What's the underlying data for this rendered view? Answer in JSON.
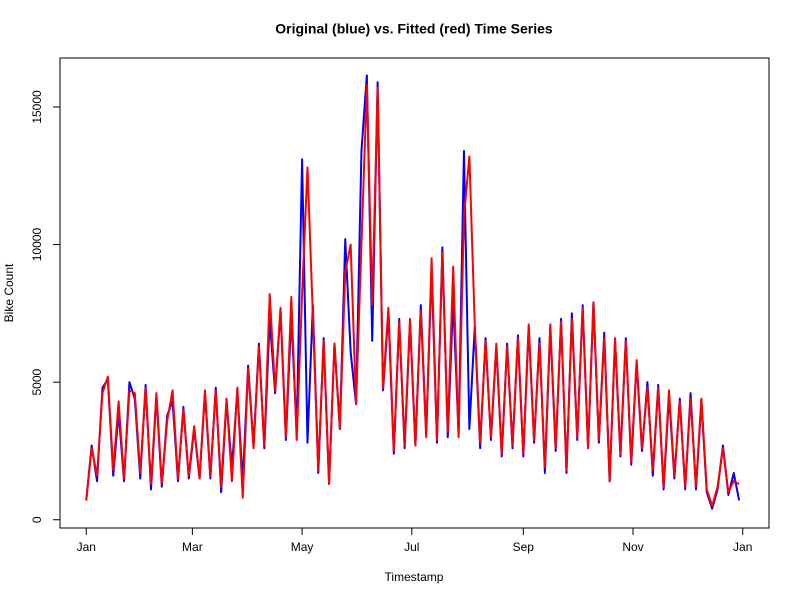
{
  "chart_data": {
    "type": "line",
    "title": "Original (blue) vs. Fitted (red) Time Series",
    "xlabel": "Timestamp",
    "ylabel": "Bike Count",
    "x": [
      0,
      3,
      6,
      9,
      12,
      15,
      18,
      21,
      24,
      27,
      30,
      33,
      36,
      39,
      42,
      45,
      48,
      51,
      54,
      57,
      60,
      63,
      66,
      69,
      72,
      75,
      78,
      81,
      84,
      87,
      90,
      93,
      96,
      99,
      102,
      105,
      108,
      111,
      114,
      117,
      120,
      123,
      126,
      129,
      132,
      135,
      138,
      141,
      144,
      147,
      150,
      153,
      156,
      159,
      162,
      165,
      168,
      171,
      174,
      177,
      180,
      183,
      186,
      189,
      192,
      195,
      198,
      201,
      204,
      207,
      210,
      213,
      216,
      219,
      222,
      225,
      228,
      231,
      234,
      237,
      240,
      243,
      246,
      249,
      252,
      255,
      258,
      261,
      264,
      267,
      270,
      273,
      276,
      279,
      282,
      285,
      288,
      291,
      294,
      297,
      300,
      303,
      306,
      309,
      312,
      315,
      318,
      321,
      324,
      327,
      330,
      333,
      336,
      339,
      342,
      345,
      348,
      351,
      354,
      357,
      360,
      363
    ],
    "series": [
      {
        "name": "Original",
        "color": "#0000ff",
        "values": [
          700,
          2700,
          1400,
          4800,
          5100,
          1600,
          3900,
          1400,
          5000,
          4400,
          1500,
          4900,
          1100,
          4500,
          1200,
          3800,
          4300,
          1400,
          4100,
          1500,
          3300,
          1500,
          4600,
          1500,
          4800,
          1000,
          4300,
          1900,
          4700,
          1400,
          5600,
          2700,
          6400,
          2600,
          7300,
          4600,
          7600,
          2900,
          7400,
          3200,
          13100,
          2800,
          7800,
          1700,
          6600,
          1300,
          6400,
          3300,
          10200,
          6100,
          4200,
          13400,
          16150,
          6500,
          15900,
          4700,
          7500,
          2400,
          7300,
          2600,
          7200,
          2700,
          7800,
          3100,
          9100,
          2800,
          9900,
          3000,
          8000,
          3100,
          13400,
          3300,
          7000,
          2600,
          6600,
          2900,
          6300,
          2300,
          6400,
          2600,
          6700,
          2300,
          7000,
          2800,
          6600,
          1700,
          7000,
          2500,
          7300,
          1700,
          7500,
          2900,
          7800,
          2600,
          7900,
          2800,
          6800,
          1400,
          6500,
          2300,
          6600,
          2000,
          5700,
          2500,
          5000,
          1600,
          4900,
          1100,
          4500,
          1500,
          4400,
          1100,
          4600,
          1100,
          4300,
          1000,
          400,
          1100,
          2700,
          900,
          1700,
          700
        ]
      },
      {
        "name": "Fitted",
        "color": "#ff0000",
        "values": [
          700,
          2600,
          1600,
          4600,
          5200,
          1800,
          4300,
          1500,
          4700,
          4600,
          1700,
          4800,
          1300,
          4600,
          1300,
          3600,
          4700,
          1500,
          4000,
          1600,
          3400,
          1500,
          4700,
          1600,
          4700,
          1200,
          4400,
          1400,
          4800,
          800,
          5500,
          2600,
          6300,
          2700,
          8200,
          4700,
          7700,
          3000,
          8100,
          2900,
          8200,
          12800,
          7400,
          1800,
          6500,
          1300,
          6400,
          3300,
          9000,
          10000,
          4200,
          10000,
          15800,
          7800,
          15700,
          4800,
          7700,
          2500,
          7200,
          2700,
          7300,
          2700,
          7600,
          3000,
          9500,
          2900,
          9700,
          3200,
          9200,
          3000,
          11000,
          13200,
          7100,
          2800,
          6500,
          3000,
          6400,
          2400,
          6300,
          2700,
          6600,
          2400,
          7100,
          2900,
          6400,
          1900,
          7100,
          2600,
          7200,
          1800,
          7300,
          3000,
          7700,
          2600,
          7900,
          2900,
          6600,
          1400,
          6600,
          2400,
          6500,
          2100,
          5800,
          2600,
          4800,
          1800,
          4800,
          1200,
          4700,
          1600,
          4300,
          1200,
          4400,
          1200,
          4400,
          1100,
          500,
          1200,
          2600,
          1000,
          1400,
          1300
        ]
      }
    ],
    "xlim": [
      -14.6,
      379.6
    ],
    "xticks": [
      {
        "value": 0,
        "label": "Jan"
      },
      {
        "value": 59,
        "label": "Mar"
      },
      {
        "value": 120,
        "label": "May"
      },
      {
        "value": 181,
        "label": "Jul"
      },
      {
        "value": 243,
        "label": "Sep"
      },
      {
        "value": 304,
        "label": "Nov"
      },
      {
        "value": 365,
        "label": "Jan"
      }
    ],
    "ylim": [
      -300,
      16780
    ],
    "yticks": [
      0,
      5000,
      10000,
      15000
    ]
  }
}
